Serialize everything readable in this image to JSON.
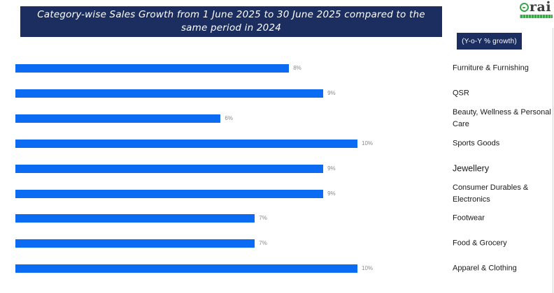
{
  "header": {
    "title_line1": "Category-wise Sales Growth from 1 June 2025 to 30 June 2025 compared to the",
    "title_line2": "same period in 2024",
    "logo_text": "rai",
    "badge_label": "(Y-o-Y % growth)"
  },
  "colors": {
    "banner_bg": "#1B2E5F",
    "badge_bg": "#1B2E5F",
    "bar_blue": "#0B6CF3",
    "logo_green": "#3FA54A",
    "value_label_gray": "#8A8A8A",
    "category_text": "#1a1a1a",
    "title_text": "#ffffff"
  },
  "chart_data": {
    "type": "bar",
    "orientation": "horizontal",
    "title": "Category-wise Sales Growth from 1 June 2025 to 30 June 2025 compared to the same period in 2024",
    "legend": "(Y-o-Y % growth)",
    "unit": "Y-o-Y % growth",
    "grid": false,
    "xlim": [
      0,
      10.5
    ],
    "categories": [
      "Furniture &  Furnishing",
      "QSR",
      "Beauty, Wellness & Personal Care",
      "Sports Goods",
      "Jewellery",
      "Consumer Durables & Electronics",
      "Footwear",
      "Food & Grocery",
      "Apparel & Clothing"
    ],
    "values": [
      8,
      9,
      6,
      10,
      9,
      9,
      7,
      7,
      10
    ],
    "value_labels": [
      "8%",
      "9%",
      "6%",
      "10%",
      "9%",
      "9%",
      "7%",
      "7%",
      "10%"
    ]
  }
}
